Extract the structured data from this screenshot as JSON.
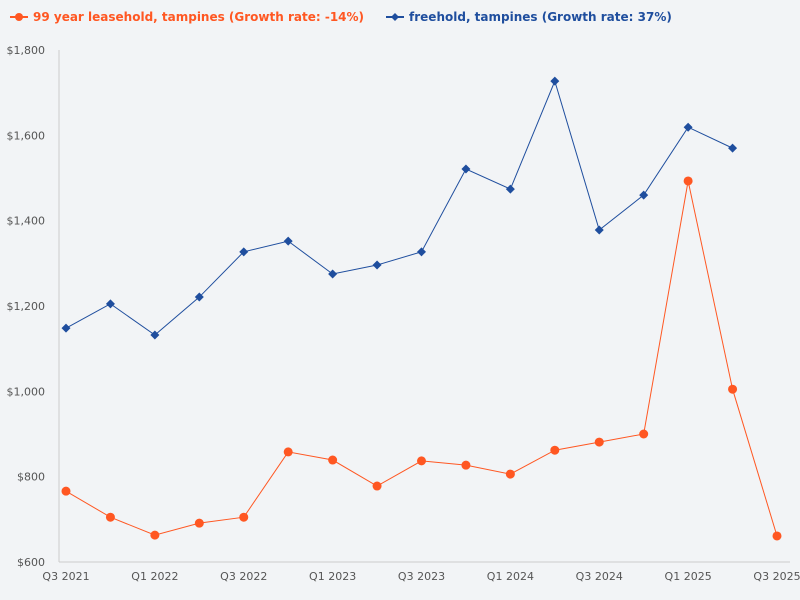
{
  "chart_data": {
    "type": "line",
    "title": "",
    "xlabel": "",
    "ylabel": "",
    "ylim": [
      600,
      1800
    ],
    "yticks": [
      "$600",
      "$800",
      "$1,000",
      "$1,200",
      "$1,400",
      "$1,600",
      "$1,800"
    ],
    "ytick_values": [
      600,
      800,
      1000,
      1200,
      1400,
      1600,
      1800
    ],
    "categories": [
      "Q3 2021",
      "Q4 2021",
      "Q1 2022",
      "Q2 2022",
      "Q3 2022",
      "Q4 2022",
      "Q1 2023",
      "Q2 2023",
      "Q3 2023",
      "Q4 2023",
      "Q1 2024",
      "Q2 2024",
      "Q3 2024",
      "Q4 2024",
      "Q1 2025",
      "Q2 2025",
      "Q3 2025"
    ],
    "xtick_labels": [
      "Q3 2021",
      "Q1 2022",
      "Q3 2022",
      "Q1 2023",
      "Q3 2023",
      "Q1 2024",
      "Q3 2024",
      "Q1 2025",
      "Q3 2025"
    ],
    "grid": false,
    "legend_placement": "top-left",
    "series": [
      {
        "name": "99 year leasehold, tampines (Growth rate: -14%)",
        "color": "#ff5722",
        "marker": "circle",
        "values": [
          766,
          705,
          663,
          691,
          705,
          858,
          839,
          778,
          837,
          827,
          806,
          862,
          881,
          900,
          1493,
          1005,
          661
        ]
      },
      {
        "name": "freehold, tampines (Growth rate: 37%)",
        "color": "#1f4e9e",
        "marker": "diamond",
        "values": [
          1148,
          1205,
          1132,
          1221,
          1327,
          1352,
          1275,
          1296,
          1327,
          1521,
          1474,
          1727,
          1378,
          1460,
          1619,
          1570,
          null
        ]
      }
    ]
  }
}
